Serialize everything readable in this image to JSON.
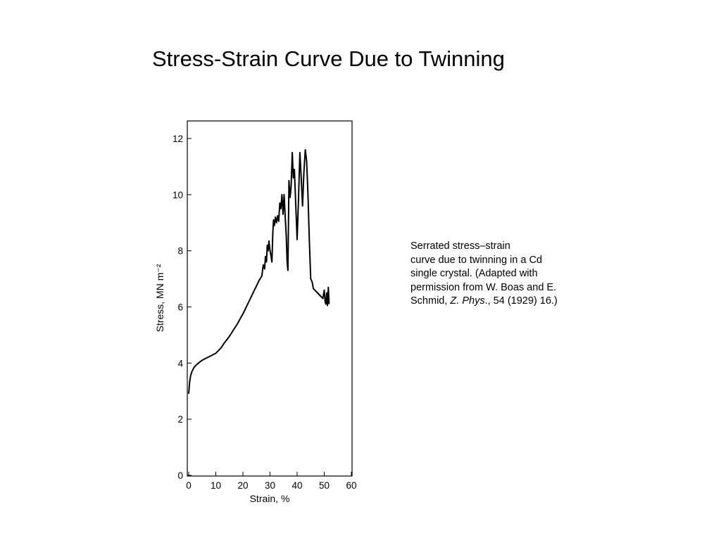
{
  "slide": {
    "title": "Stress-Strain Curve Due to Twinning"
  },
  "caption": {
    "line1": "Serrated stress–strain",
    "line2": "curve due to twinning in a Cd",
    "line3": "single crystal. (Adapted with",
    "line4": "permission from W. Boas and E.",
    "line5_prefix": "Schmid, ",
    "line5_italic": "Z. Phys",
    "line5_suffix": "., 54 (1929) 16.)"
  },
  "chart_data": {
    "type": "line",
    "title": "",
    "xlabel": "Strain, %",
    "ylabel": "Stress, MN m⁻²",
    "xlim": [
      0,
      60
    ],
    "ylim": [
      0,
      12.2
    ],
    "x_ticks": [
      "0",
      "10",
      "20",
      "30",
      "40",
      "50",
      "60"
    ],
    "y_ticks": [
      "0",
      "2",
      "4",
      "6",
      "8",
      "10",
      "12"
    ],
    "grid": false,
    "legend": "none",
    "line_color": "#000000",
    "series": [
      {
        "x": [
          0,
          0.3,
          0.7,
          1.2,
          2,
          3,
          4,
          5,
          6,
          7,
          8,
          9,
          10,
          11,
          12,
          13,
          14,
          15,
          16,
          17,
          18,
          19,
          20,
          21,
          22,
          23,
          24,
          25,
          26,
          27,
          27.5,
          28,
          28.3,
          28.7,
          29,
          29.3,
          29.6,
          30,
          30.3,
          30.7,
          31,
          31.3,
          31.6,
          32,
          32.4,
          32.8,
          33.2,
          33.6,
          34,
          34.4,
          34.8,
          35.2,
          35.6,
          36,
          36.3,
          36.6,
          37,
          37.4,
          37.8,
          38.2,
          38.6,
          39,
          39.5,
          40,
          40.5,
          41,
          41.5,
          42,
          42.5,
          43,
          43.5,
          44,
          44.5,
          45,
          45.5,
          46,
          46.5,
          47,
          47.5,
          48,
          48.5,
          49,
          49.5,
          50,
          50.3,
          50.6,
          50.9,
          51.2,
          51.5,
          51.8
        ],
        "y": [
          2.9,
          3.3,
          3.55,
          3.7,
          3.85,
          3.95,
          4.03,
          4.1,
          4.15,
          4.2,
          4.25,
          4.3,
          4.35,
          4.45,
          4.55,
          4.7,
          4.82,
          4.95,
          5.1,
          5.25,
          5.4,
          5.58,
          5.75,
          5.95,
          6.15,
          6.35,
          6.55,
          6.75,
          6.95,
          7.1,
          7.5,
          7.35,
          7.8,
          7.6,
          8.2,
          8.0,
          8.35,
          8.0,
          7.85,
          7.6,
          8.6,
          9.1,
          8.9,
          9.2,
          9.0,
          9.25,
          9.05,
          9.7,
          9.5,
          10.0,
          9.3,
          10.0,
          9.2,
          8.5,
          7.6,
          7.3,
          10.5,
          9.9,
          10.3,
          11.5,
          10.6,
          10.9,
          9.6,
          8.4,
          9.8,
          11.5,
          10.6,
          9.6,
          10.8,
          11.6,
          11.2,
          10.0,
          8.4,
          7.0,
          6.9,
          6.65,
          6.6,
          6.55,
          6.5,
          6.45,
          6.4,
          6.35,
          6.3,
          6.6,
          6.2,
          6.1,
          6.5,
          6.05,
          6.7,
          6.1
        ]
      }
    ]
  }
}
